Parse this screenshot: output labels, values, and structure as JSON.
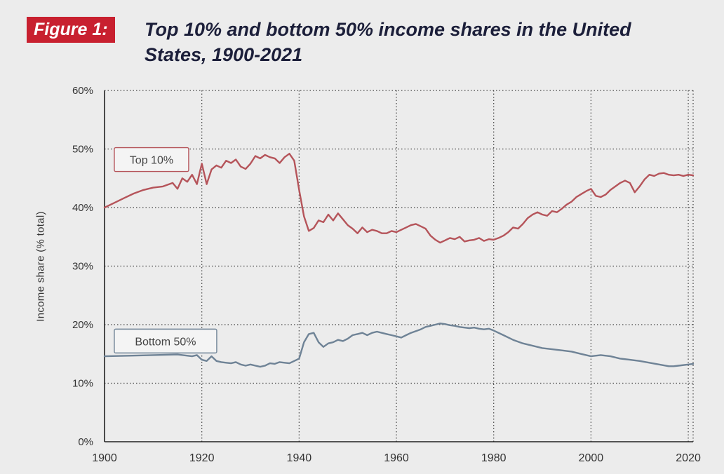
{
  "figure": {
    "badge": "Figure 1:",
    "title_line1": "Top 10% and bottom 50% income shares in the United",
    "title_line2": "States, 1900-2021"
  },
  "colors": {
    "badge_bg": "#c8202f",
    "top10": "#b5545a",
    "bottom50": "#6f8396",
    "grid": "#444444"
  },
  "chart_data": {
    "type": "line",
    "title": "Top 10% and bottom 50% income shares in the United States, 1900-2021",
    "xlabel": "",
    "ylabel": "Income share (% total)",
    "xlim": [
      1900,
      2021
    ],
    "ylim": [
      0,
      60
    ],
    "x_ticks": [
      1900,
      1920,
      1940,
      1960,
      1980,
      2000,
      2020
    ],
    "y_ticks": [
      0,
      10,
      20,
      30,
      40,
      50,
      60
    ],
    "y_tick_labels": [
      "0%",
      "10%",
      "20%",
      "30%",
      "40%",
      "50%",
      "60%"
    ],
    "grid": true,
    "legend": "inline labels",
    "series": [
      {
        "name": "Top 10%",
        "x": [
          1900,
          1902,
          1904,
          1906,
          1908,
          1910,
          1912,
          1914,
          1915,
          1916,
          1917,
          1918,
          1919,
          1920,
          1921,
          1922,
          1923,
          1924,
          1925,
          1926,
          1927,
          1928,
          1929,
          1930,
          1931,
          1932,
          1933,
          1934,
          1935,
          1936,
          1937,
          1938,
          1939,
          1940,
          1941,
          1942,
          1943,
          1944,
          1945,
          1946,
          1947,
          1948,
          1949,
          1950,
          1951,
          1952,
          1953,
          1954,
          1955,
          1956,
          1957,
          1958,
          1959,
          1960,
          1961,
          1962,
          1963,
          1964,
          1965,
          1966,
          1967,
          1968,
          1969,
          1970,
          1971,
          1972,
          1973,
          1974,
          1975,
          1976,
          1977,
          1978,
          1979,
          1980,
          1981,
          1982,
          1983,
          1984,
          1985,
          1986,
          1987,
          1988,
          1989,
          1990,
          1991,
          1992,
          1993,
          1994,
          1995,
          1996,
          1997,
          1998,
          1999,
          2000,
          2001,
          2002,
          2003,
          2004,
          2005,
          2006,
          2007,
          2008,
          2009,
          2010,
          2011,
          2012,
          2013,
          2014,
          2015,
          2016,
          2017,
          2018,
          2019,
          2020,
          2021
        ],
        "values": [
          40.0,
          40.8,
          41.6,
          42.4,
          43.0,
          43.4,
          43.6,
          44.2,
          43.2,
          45.0,
          44.4,
          45.6,
          44.0,
          47.5,
          44.0,
          46.5,
          47.2,
          46.8,
          48.0,
          47.6,
          48.2,
          47.0,
          46.6,
          47.5,
          48.8,
          48.4,
          49.0,
          48.6,
          48.4,
          47.6,
          48.6,
          49.2,
          48.0,
          43.0,
          38.5,
          36.0,
          36.5,
          37.8,
          37.5,
          38.8,
          37.8,
          39.0,
          38.0,
          37.0,
          36.4,
          35.6,
          36.6,
          35.8,
          36.2,
          36.0,
          35.6,
          35.6,
          36.0,
          35.8,
          36.2,
          36.6,
          37.0,
          37.2,
          36.8,
          36.4,
          35.2,
          34.5,
          34.0,
          34.4,
          34.8,
          34.6,
          35.0,
          34.2,
          34.4,
          34.5,
          34.8,
          34.3,
          34.6,
          34.5,
          34.8,
          35.2,
          35.8,
          36.6,
          36.4,
          37.2,
          38.2,
          38.8,
          39.2,
          38.8,
          38.6,
          39.4,
          39.2,
          39.8,
          40.5,
          41.0,
          41.8,
          42.3,
          42.8,
          43.2,
          42.0,
          41.8,
          42.2,
          43.0,
          43.6,
          44.2,
          44.6,
          44.2,
          42.6,
          43.6,
          44.8,
          45.6,
          45.4,
          45.8,
          45.9,
          45.6,
          45.5,
          45.6,
          45.4,
          45.6,
          45.5
        ]
      },
      {
        "name": "Bottom 50%",
        "x": [
          1900,
          1905,
          1910,
          1915,
          1918,
          1919,
          1920,
          1921,
          1922,
          1923,
          1924,
          1925,
          1926,
          1927,
          1928,
          1929,
          1930,
          1931,
          1932,
          1933,
          1934,
          1935,
          1936,
          1937,
          1938,
          1939,
          1940,
          1941,
          1942,
          1943,
          1944,
          1945,
          1946,
          1947,
          1948,
          1949,
          1950,
          1951,
          1952,
          1953,
          1954,
          1955,
          1956,
          1957,
          1958,
          1959,
          1960,
          1961,
          1962,
          1963,
          1964,
          1965,
          1966,
          1967,
          1968,
          1969,
          1970,
          1971,
          1972,
          1973,
          1974,
          1975,
          1976,
          1977,
          1978,
          1979,
          1980,
          1982,
          1984,
          1986,
          1988,
          1990,
          1992,
          1994,
          1996,
          1998,
          2000,
          2002,
          2004,
          2006,
          2008,
          2010,
          2012,
          2014,
          2016,
          2017,
          2018,
          2020,
          2021
        ],
        "values": [
          14.6,
          14.7,
          14.8,
          14.9,
          14.6,
          14.8,
          14.0,
          13.8,
          14.6,
          13.8,
          13.6,
          13.5,
          13.4,
          13.6,
          13.2,
          13.0,
          13.2,
          13.0,
          12.8,
          13.0,
          13.4,
          13.3,
          13.6,
          13.5,
          13.4,
          13.8,
          14.2,
          17.0,
          18.4,
          18.6,
          17.0,
          16.2,
          16.8,
          17.0,
          17.4,
          17.2,
          17.6,
          18.2,
          18.4,
          18.6,
          18.2,
          18.6,
          18.8,
          18.6,
          18.4,
          18.2,
          18.0,
          17.8,
          18.2,
          18.6,
          18.9,
          19.2,
          19.6,
          19.8,
          20.0,
          20.2,
          20.1,
          19.9,
          19.8,
          19.6,
          19.5,
          19.4,
          19.5,
          19.3,
          19.2,
          19.3,
          19.0,
          18.2,
          17.4,
          16.8,
          16.4,
          16.0,
          15.8,
          15.6,
          15.4,
          15.0,
          14.6,
          14.8,
          14.6,
          14.2,
          14.0,
          13.8,
          13.5,
          13.2,
          12.9,
          12.9,
          13.0,
          13.2,
          13.3
        ]
      }
    ]
  }
}
